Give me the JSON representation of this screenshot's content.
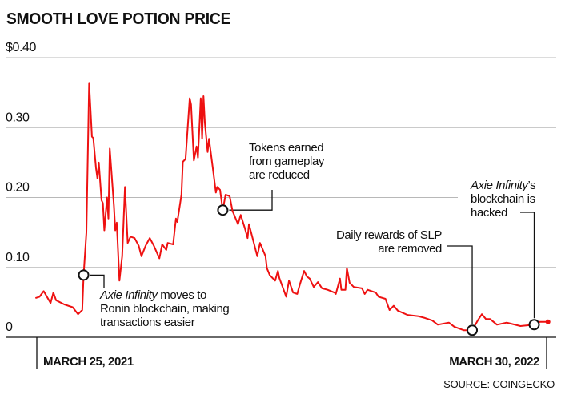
{
  "chart_data": {
    "type": "line",
    "title": "SMOOTH LOVE POTION PRICE",
    "source": "SOURCE: COINGECKO",
    "ylim": [
      0,
      0.4
    ],
    "yticks": [
      {
        "value": 0,
        "label": "0"
      },
      {
        "value": 0.1,
        "label": "0.10"
      },
      {
        "value": 0.2,
        "label": "0.20"
      },
      {
        "value": 0.3,
        "label": "0.30"
      },
      {
        "value": 0.4,
        "label": "$0.40"
      }
    ],
    "xlim": [
      "2021-03-25",
      "2022-03-30"
    ],
    "xticks": [
      {
        "date": "2021-03-25",
        "label": "MARCH 25, 2021"
      },
      {
        "date": "2022-03-30",
        "label": "MARCH 30, 2022"
      }
    ],
    "grid": true,
    "line_color": "#ee1111",
    "series": [
      {
        "x": [
          "2021-03-24",
          "2021-03-27",
          "2021-03-30",
          "2021-04-04",
          "2021-04-06",
          "2021-04-08",
          "2021-04-14",
          "2021-04-20",
          "2021-04-24",
          "2021-04-27",
          "2021-04-28",
          "2021-04-30",
          "2021-05-02",
          "2021-05-04",
          "2021-05-05",
          "2021-05-07",
          "2021-05-08",
          "2021-05-09",
          "2021-05-11",
          "2021-05-12",
          "2021-05-13",
          "2021-05-15",
          "2021-05-16",
          "2021-05-17",
          "2021-05-20",
          "2021-05-21",
          "2021-05-22",
          "2021-05-24",
          "2021-05-26",
          "2021-05-28",
          "2021-05-30",
          "2021-06-01",
          "2021-06-04",
          "2021-06-07",
          "2021-06-09",
          "2021-06-12",
          "2021-06-15",
          "2021-06-18",
          "2021-06-22",
          "2021-06-24",
          "2021-06-27",
          "2021-06-28",
          "2021-07-02",
          "2021-07-04",
          "2021-07-05",
          "2021-07-08",
          "2021-07-09",
          "2021-07-11",
          "2021-07-14",
          "2021-07-15",
          "2021-07-17",
          "2021-07-19",
          "2021-07-20",
          "2021-07-22",
          "2021-07-23",
          "2021-07-24",
          "2021-07-25",
          "2021-07-27",
          "2021-07-28",
          "2021-07-31",
          "2021-08-02",
          "2021-08-03",
          "2021-08-05",
          "2021-08-07",
          "2021-08-09",
          "2021-08-12",
          "2021-08-14",
          "2021-08-18",
          "2021-08-20",
          "2021-08-23",
          "2021-08-25",
          "2021-08-26",
          "2021-08-29",
          "2021-09-01",
          "2021-09-03",
          "2021-09-07",
          "2021-09-08",
          "2021-09-10",
          "2021-09-14",
          "2021-09-16",
          "2021-09-17",
          "2021-09-22",
          "2021-09-24",
          "2021-09-27",
          "2021-09-30",
          "2021-10-02",
          "2021-10-05",
          "2021-10-07",
          "2021-10-09",
          "2021-10-12",
          "2021-10-15",
          "2021-10-18",
          "2021-10-22",
          "2021-10-27",
          "2021-10-28",
          "2021-10-31",
          "2021-11-01",
          "2021-11-04",
          "2021-11-05",
          "2021-11-07",
          "2021-11-10",
          "2021-11-16",
          "2021-11-18",
          "2021-11-20",
          "2021-11-26",
          "2021-11-28",
          "2021-12-03",
          "2021-12-06",
          "2021-12-09",
          "2021-12-12",
          "2021-12-19",
          "2021-12-27",
          "2021-12-31",
          "2022-01-06",
          "2022-01-10",
          "2022-01-18",
          "2022-01-22",
          "2022-01-29",
          "2022-02-04",
          "2022-02-08",
          "2022-02-11",
          "2022-02-14",
          "2022-02-17",
          "2022-02-22",
          "2022-03-01",
          "2022-03-11",
          "2022-03-21",
          "2022-03-25",
          "2022-03-31"
        ],
        "y": [
          0.056,
          0.058,
          0.066,
          0.049,
          0.064,
          0.053,
          0.047,
          0.043,
          0.033,
          0.039,
          0.089,
          0.15,
          0.364,
          0.287,
          0.285,
          0.242,
          0.227,
          0.25,
          0.196,
          0.192,
          0.153,
          0.2,
          0.17,
          0.27,
          0.188,
          0.153,
          0.164,
          0.081,
          0.116,
          0.215,
          0.135,
          0.144,
          0.142,
          0.131,
          0.116,
          0.131,
          0.142,
          0.131,
          0.113,
          0.133,
          0.125,
          0.135,
          0.133,
          0.17,
          0.165,
          0.204,
          0.251,
          0.255,
          0.342,
          0.333,
          0.253,
          0.273,
          0.257,
          0.342,
          0.284,
          0.345,
          0.307,
          0.265,
          0.284,
          0.238,
          0.207,
          0.215,
          0.211,
          0.182,
          0.204,
          0.202,
          0.181,
          0.162,
          0.175,
          0.156,
          0.142,
          0.162,
          0.139,
          0.116,
          0.135,
          0.116,
          0.099,
          0.089,
          0.081,
          0.095,
          0.085,
          0.058,
          0.081,
          0.064,
          0.062,
          0.076,
          0.095,
          0.087,
          0.084,
          0.072,
          0.079,
          0.07,
          0.068,
          0.064,
          0.062,
          0.084,
          0.068,
          0.068,
          0.099,
          0.078,
          0.072,
          0.07,
          0.062,
          0.068,
          0.064,
          0.058,
          0.055,
          0.039,
          0.045,
          0.038,
          0.032,
          0.03,
          0.028,
          0.024,
          0.018,
          0.021,
          0.015,
          0.01,
          0.01,
          0.024,
          0.033,
          0.026,
          0.026,
          0.018,
          0.021,
          0.016,
          0.018,
          0.022,
          0.022
        ]
      }
    ],
    "annotations": [
      {
        "date": "2021-04-28",
        "value": 0.089,
        "lines": [
          {
            "italic": "Axie Infinity",
            "text": " moves to"
          },
          {
            "italic": "",
            "text": "Ronin blockchain, making"
          },
          {
            "italic": "",
            "text": "transactions easier"
          }
        ]
      },
      {
        "date": "2021-08-07",
        "value": 0.182,
        "lines": [
          {
            "italic": "",
            "text": "Tokens earned"
          },
          {
            "italic": "",
            "text": "from gameplay"
          },
          {
            "italic": "",
            "text": "are reduced"
          }
        ]
      },
      {
        "date": "2022-02-04",
        "value": 0.01,
        "lines": [
          {
            "italic": "",
            "text": "Daily rewards of SLP"
          },
          {
            "italic": "",
            "text": "are removed"
          }
        ]
      },
      {
        "date": "2022-03-21",
        "value": 0.018,
        "lines": [
          {
            "italic": "Axie Infinity",
            "text": "’s"
          },
          {
            "italic": "",
            "text": "blockchain is"
          },
          {
            "italic": "",
            "text": "hacked"
          }
        ]
      }
    ]
  }
}
